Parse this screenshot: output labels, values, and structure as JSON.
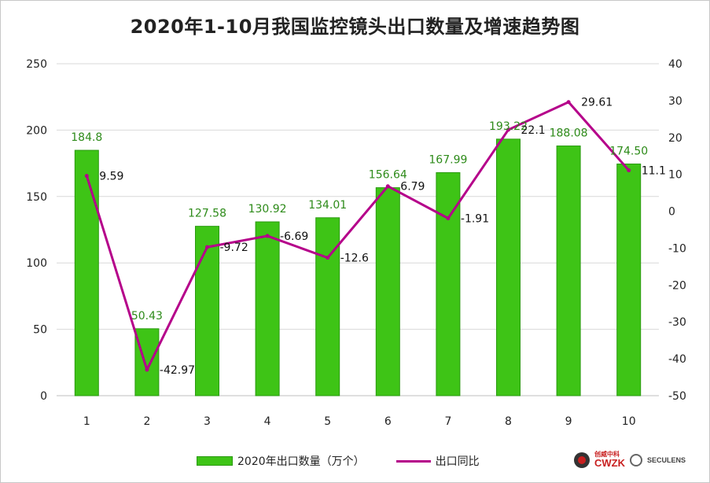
{
  "chart_data": {
    "type": "bar",
    "title": "2020年1-10月我国监控镜头出口数量及增速趋势图",
    "categories": [
      "1",
      "2",
      "3",
      "4",
      "5",
      "6",
      "7",
      "8",
      "9",
      "10"
    ],
    "series": [
      {
        "name": "2020年出口数量（万个）",
        "type": "bar",
        "axis": "left",
        "values": [
          184.8,
          50.43,
          127.58,
          130.92,
          134.01,
          156.64,
          167.99,
          193.22,
          188.08,
          174.5
        ],
        "labels": [
          "184.8",
          "50.43",
          "127.58",
          "130.92",
          "134.01",
          "156.64",
          "167.99",
          "193.22",
          "188.08",
          "174.50"
        ],
        "color": "#3ec416"
      },
      {
        "name": "出口同比",
        "type": "line",
        "axis": "right",
        "values": [
          9.59,
          -42.97,
          -9.72,
          -6.69,
          -12.6,
          6.79,
          -1.91,
          22.1,
          29.61,
          11.1
        ],
        "labels": [
          "9.59",
          "-42.97",
          "-9.72",
          "-6.69",
          "-12.6",
          "6.79",
          "-1.91",
          "22.1",
          "29.61",
          "11.1"
        ],
        "color": "#b5008a"
      }
    ],
    "y_left": {
      "ylim": [
        0,
        250
      ],
      "ticks": [
        "0",
        "50",
        "100",
        "150",
        "200",
        "250"
      ]
    },
    "y_right": {
      "ylim": [
        -50,
        40
      ],
      "ticks": [
        "-50",
        "-40",
        "-30",
        "-20",
        "-10",
        "0",
        "10",
        "20",
        "30",
        "40"
      ]
    },
    "grid": true,
    "legend_position": "bottom"
  },
  "legend": {
    "bar_label": "2020年出口数量（万个）",
    "line_label": "出口同比"
  },
  "logos": {
    "logo1_cn": "创威中科",
    "logo1_en": "CWZK",
    "logo2_text": "SECULENS"
  }
}
